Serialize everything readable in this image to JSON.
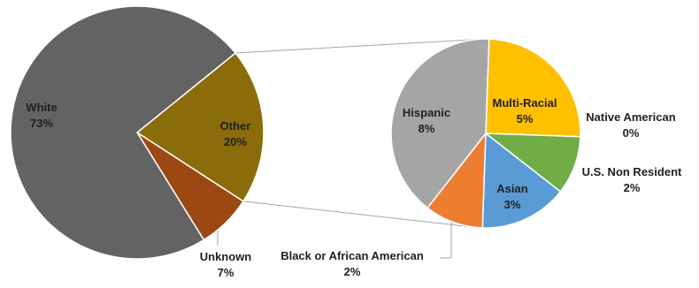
{
  "chart_data": {
    "type": "pie",
    "subtype": "pie-of-pie",
    "main_pie": {
      "slices": [
        {
          "label": "White",
          "value_label": "73%",
          "value": 73,
          "color": "#636363"
        },
        {
          "label": "Other",
          "value_label": "20%",
          "value": 20,
          "color": "#8b6c0a"
        },
        {
          "label": "Unknown",
          "value_label": "7%",
          "value": 7,
          "color": "#9c4813"
        }
      ]
    },
    "secondary_pie": {
      "expands": "Other",
      "slices": [
        {
          "label": "Hispanic",
          "value_label": "8%",
          "value": 8,
          "color": "#a5a5a5"
        },
        {
          "label": "Multi-Racial",
          "value_label": "5%",
          "value": 5,
          "color": "#ffc000"
        },
        {
          "label": "Native American",
          "value_label": "0%",
          "value": 0,
          "color": "#70ad47"
        },
        {
          "label": "U.S. Non Resident",
          "value_label": "2%",
          "value": 2,
          "color": "#70ad47"
        },
        {
          "label": "Asian",
          "value_label": "3%",
          "value": 3,
          "color": "#5b9bd5"
        },
        {
          "label": "Black or African American",
          "value_label": "2%",
          "value": 2,
          "color": "#ed7d31"
        }
      ]
    }
  }
}
